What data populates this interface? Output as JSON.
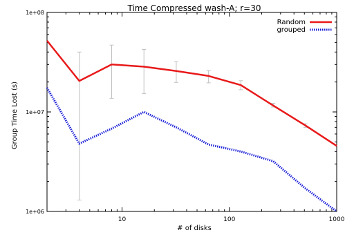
{
  "chart_data": {
    "type": "line",
    "title": "Time Compressed wash-A; r=30",
    "xlabel": "# of disks",
    "ylabel": "Group Time Lost (s)",
    "x_scale": "log",
    "y_scale": "log",
    "xlim": [
      2,
      1000
    ],
    "ylim": [
      1000000,
      100000000
    ],
    "x_ticks": [
      {
        "value": 10,
        "label": "10"
      },
      {
        "value": 100,
        "label": "100"
      },
      {
        "value": 1000,
        "label": "1000"
      }
    ],
    "y_ticks": [
      {
        "value": 1000000,
        "label": "1e+06"
      },
      {
        "value": 10000000,
        "label": "1e+07"
      },
      {
        "value": 100000000,
        "label": "1e+08"
      }
    ],
    "grid": false,
    "legend_position": "top-right",
    "series": [
      {
        "name": "Random",
        "color": "#e8191a",
        "style": "solid",
        "points": [
          {
            "x": 2,
            "y": 52000000
          },
          {
            "x": 4,
            "y": 20500000
          },
          {
            "x": 8,
            "y": 30000000
          },
          {
            "x": 16,
            "y": 28500000
          },
          {
            "x": 32,
            "y": 25800000
          },
          {
            "x": 64,
            "y": 23000000
          },
          {
            "x": 128,
            "y": 18600000
          },
          {
            "x": 256,
            "y": 11600000
          },
          {
            "x": 512,
            "y": 7300000
          },
          {
            "x": 1000,
            "y": 4550000
          }
        ],
        "error_bars": [
          {
            "x": 4,
            "low": 1300000,
            "high": 40000000
          },
          {
            "x": 8,
            "low": 13700000,
            "high": 47000000
          },
          {
            "x": 16,
            "low": 15300000,
            "high": 42500000
          },
          {
            "x": 32,
            "low": 19800000,
            "high": 32000000
          },
          {
            "x": 64,
            "low": 19600000,
            "high": 26000000
          },
          {
            "x": 128,
            "low": 16700000,
            "high": 20600000
          },
          {
            "x": 256,
            "low": 11200000,
            "high": 12200000
          },
          {
            "x": 512,
            "low": 7000000,
            "high": 7600000
          }
        ]
      },
      {
        "name": "grouped",
        "color": "#1a1fd6",
        "style": "dotted",
        "points": [
          {
            "x": 2,
            "y": 17500000
          },
          {
            "x": 4,
            "y": 4800000
          },
          {
            "x": 8,
            "y": 6800000
          },
          {
            "x": 16,
            "y": 10000000
          },
          {
            "x": 32,
            "y": 7000000
          },
          {
            "x": 64,
            "y": 4700000
          },
          {
            "x": 128,
            "y": 4000000
          },
          {
            "x": 256,
            "y": 3200000
          },
          {
            "x": 512,
            "y": 1700000
          },
          {
            "x": 1000,
            "y": 1000000
          }
        ]
      }
    ],
    "error_bar_color": "#c0c0c0"
  }
}
